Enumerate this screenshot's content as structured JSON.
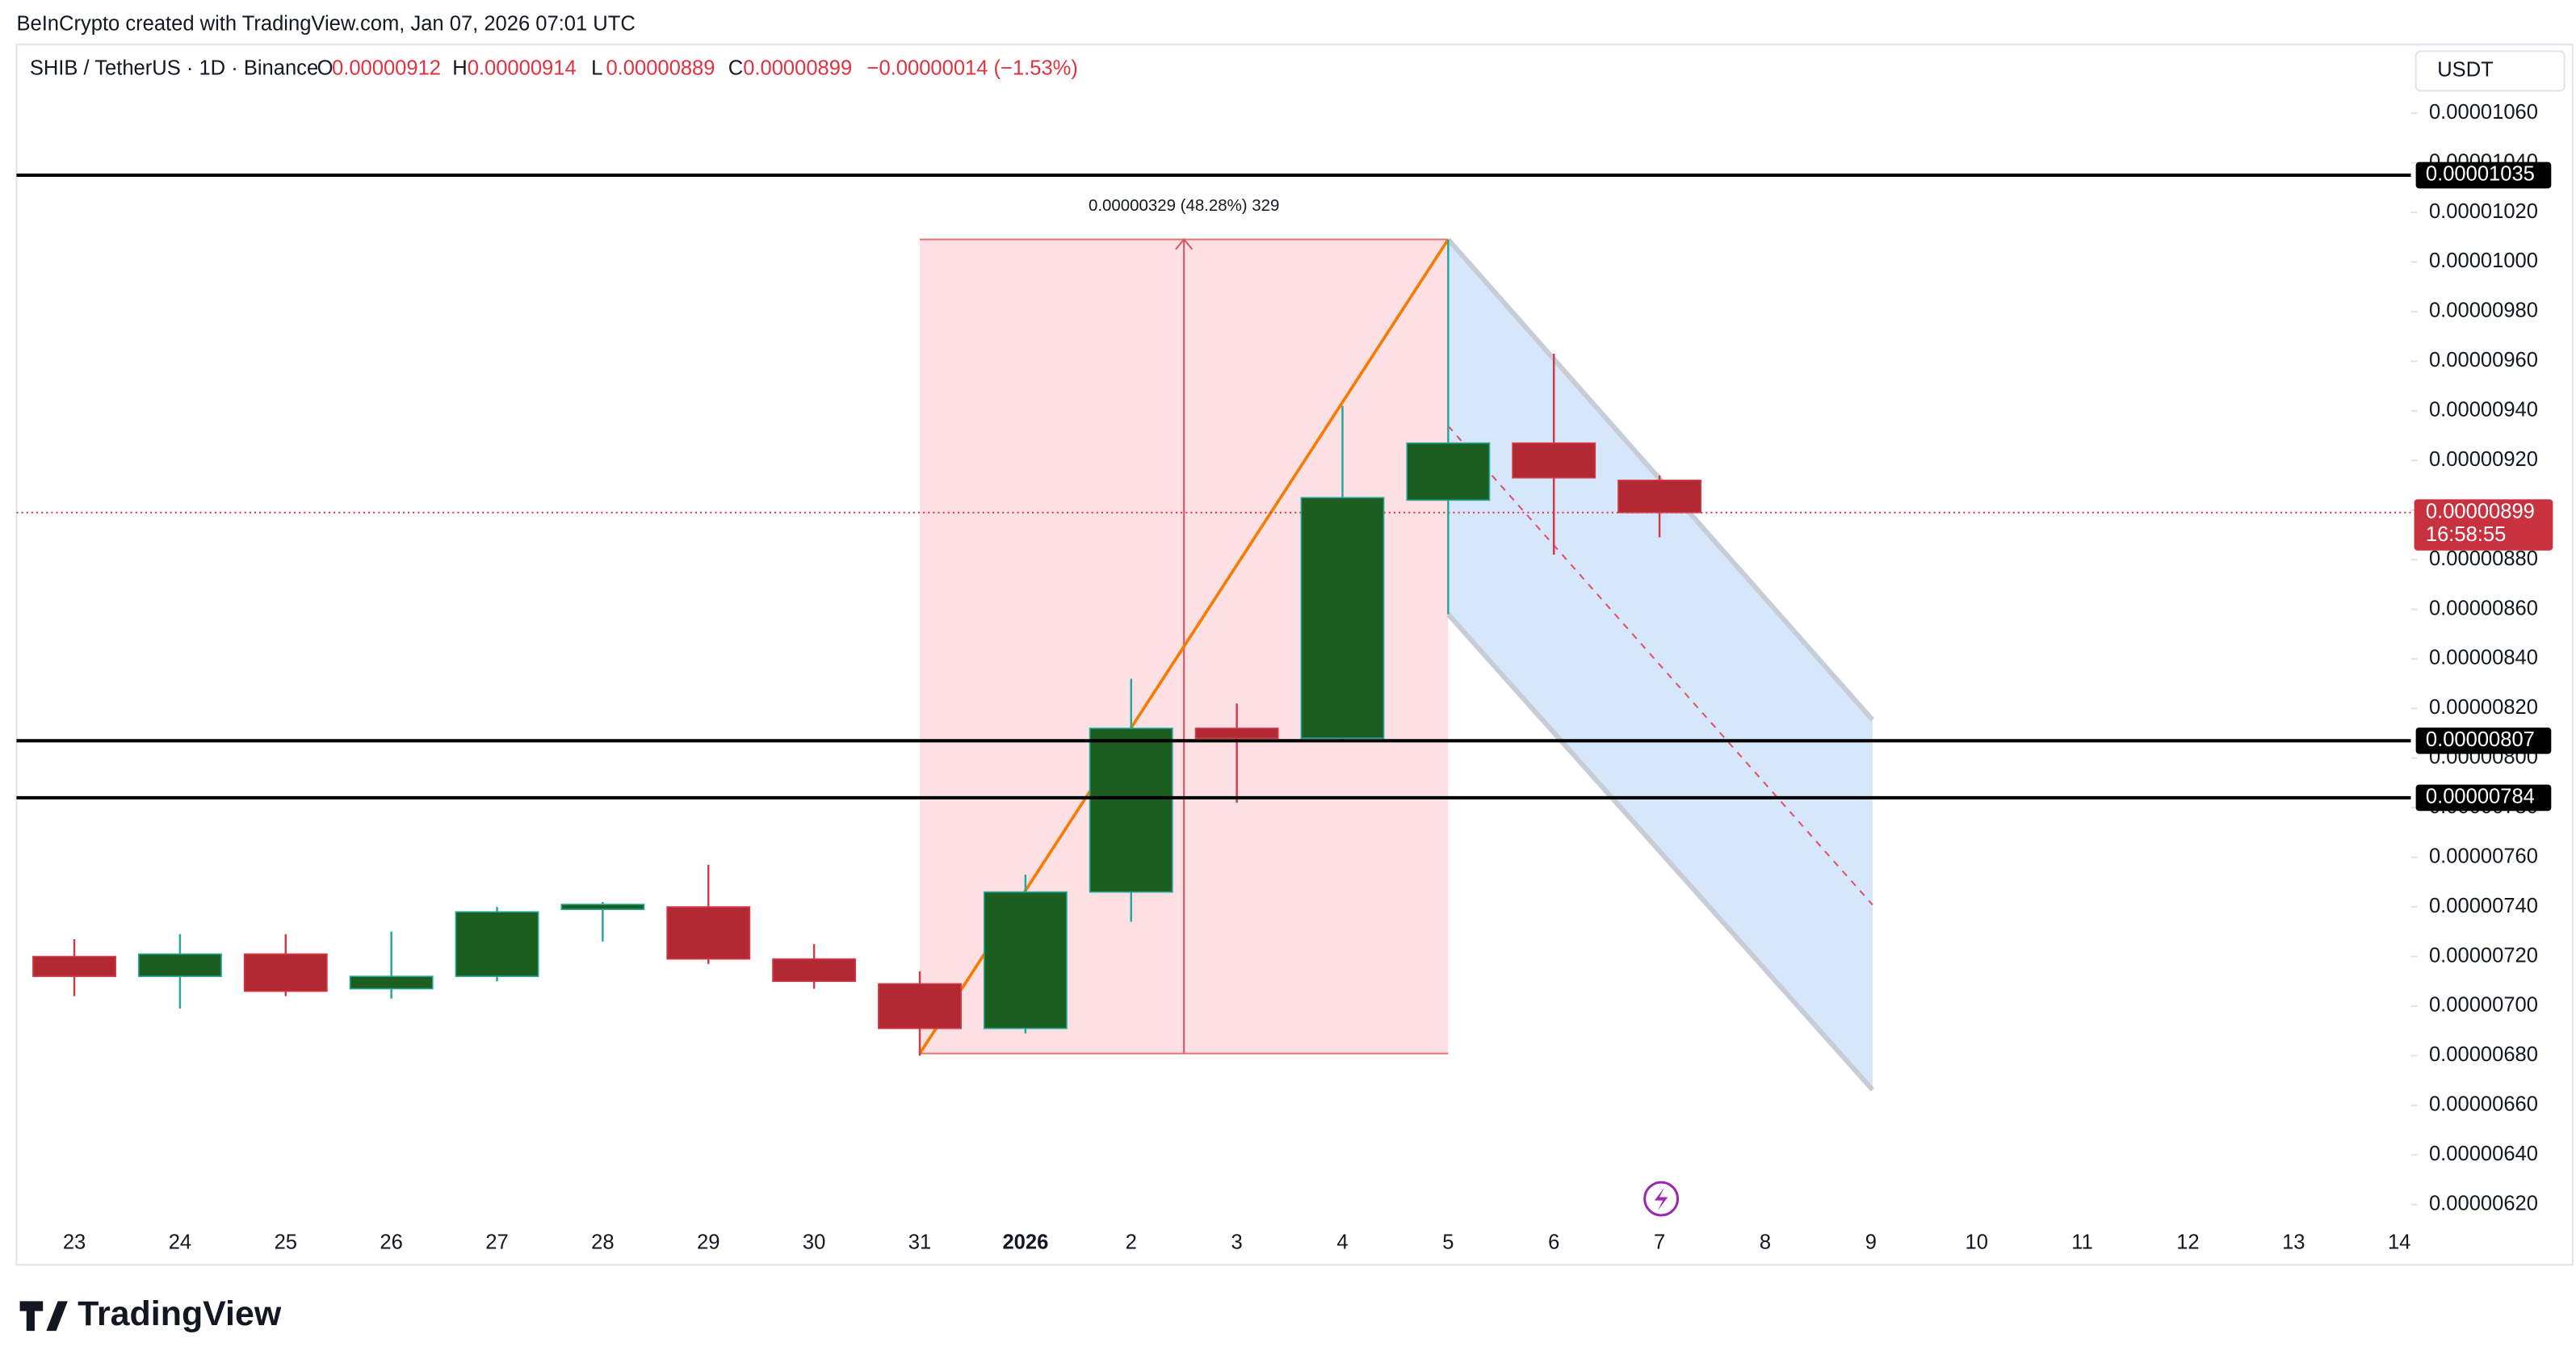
{
  "chart_data": {
    "type": "candlestick",
    "attribution": "BeInCrypto created with TradingView.com, Jan 07, 2026 07:01 UTC",
    "symbol": "SHIB / TetherUS · 1D · Binance",
    "ohlc_header": [
      {
        "key": "O",
        "value": "0.00000912"
      },
      {
        "key": "H",
        "value": "0.00000914"
      },
      {
        "key": "L",
        "value": "0.00000889"
      },
      {
        "key": "C",
        "value": "0.00000899"
      }
    ],
    "change": "−0.00000014 (−1.53%)",
    "currency": "USDT",
    "categories": [
      "23",
      "24",
      "25",
      "26",
      "27",
      "28",
      "29",
      "30",
      "31",
      "2026",
      "2",
      "3",
      "4",
      "5",
      "6",
      "7",
      "8",
      "9",
      "10",
      "11",
      "12",
      "13",
      "14"
    ],
    "open": [
      7.2e-06,
      7.12e-06,
      7.21e-06,
      7.07e-06,
      7.12e-06,
      7.39e-06,
      7.4e-06,
      7.19e-06,
      7.09e-06,
      6.91e-06,
      7.46e-06,
      8.12e-06,
      8.08e-06,
      9.04e-06,
      9.27e-06,
      9.12e-06,
      null,
      null,
      null,
      null,
      null,
      null,
      null
    ],
    "high": [
      7.27e-06,
      7.29e-06,
      7.29e-06,
      7.3e-06,
      7.4e-06,
      7.42e-06,
      7.57e-06,
      7.25e-06,
      7.14e-06,
      7.53e-06,
      8.32e-06,
      8.22e-06,
      9.42e-06,
      1.009e-05,
      9.63e-06,
      9.14e-06,
      null,
      null,
      null,
      null,
      null,
      null,
      null
    ],
    "low": [
      7.04e-06,
      6.99e-06,
      7.04e-06,
      7.03e-06,
      7.1e-06,
      7.26e-06,
      7.17e-06,
      7.07e-06,
      6.8e-06,
      6.89e-06,
      7.34e-06,
      7.82e-06,
      8.07e-06,
      8.58e-06,
      8.82e-06,
      8.89e-06,
      null,
      null,
      null,
      null,
      null,
      null,
      null
    ],
    "close": [
      7.12e-06,
      7.21e-06,
      7.06e-06,
      7.12e-06,
      7.38e-06,
      7.41e-06,
      7.19e-06,
      7.1e-06,
      6.91e-06,
      7.46e-06,
      8.12e-06,
      8.08e-06,
      9.05e-06,
      9.27e-06,
      9.13e-06,
      8.99e-06,
      null,
      null,
      null,
      null,
      null,
      null,
      null
    ],
    "up_color": "#1b5e20",
    "down_color": "#b22833",
    "ylim": [
      6.13e-06,
      1.087e-05
    ],
    "yticks": [
      {
        "value": 6.2e-06,
        "label": "0.00000620"
      },
      {
        "value": 6.4e-06,
        "label": "0.00000640"
      },
      {
        "value": 6.6e-06,
        "label": "0.00000660"
      },
      {
        "value": 6.8e-06,
        "label": "0.00000680"
      },
      {
        "value": 7e-06,
        "label": "0.00000700"
      },
      {
        "value": 7.2e-06,
        "label": "0.00000720"
      },
      {
        "value": 7.4e-06,
        "label": "0.00000740"
      },
      {
        "value": 7.6e-06,
        "label": "0.00000760"
      },
      {
        "value": 7.8e-06,
        "label": "0.00000780"
      },
      {
        "value": 8e-06,
        "label": "0.00000800"
      },
      {
        "value": 8.2e-06,
        "label": "0.00000820"
      },
      {
        "value": 8.4e-06,
        "label": "0.00000840"
      },
      {
        "value": 8.6e-06,
        "label": "0.00000860"
      },
      {
        "value": 8.8e-06,
        "label": "0.00000880"
      },
      {
        "value": 9e-06,
        "label": "0.00000900"
      },
      {
        "value": 9.2e-06,
        "label": "0.00000920"
      },
      {
        "value": 9.4e-06,
        "label": "0.00000940"
      },
      {
        "value": 9.6e-06,
        "label": "0.00000960"
      },
      {
        "value": 9.8e-06,
        "label": "0.00000980"
      },
      {
        "value": 1e-05,
        "label": "0.00001000"
      },
      {
        "value": 1.02e-05,
        "label": "0.00001020"
      },
      {
        "value": 1.04e-05,
        "label": "0.00001040"
      },
      {
        "value": 1.06e-05,
        "label": "0.00001060"
      }
    ],
    "levels": [
      {
        "value": 1.035e-05,
        "label": "0.00001035"
      },
      {
        "value": 8.07e-06,
        "label": "0.00000807"
      },
      {
        "value": 7.84e-06,
        "label": "0.00000784"
      }
    ],
    "last_price": {
      "value": 8.99e-06,
      "label": "0.00000899",
      "countdown": "16:58:55"
    },
    "measure_label": "0.00000329 (48.28%) 329",
    "brand": "TradingView"
  }
}
